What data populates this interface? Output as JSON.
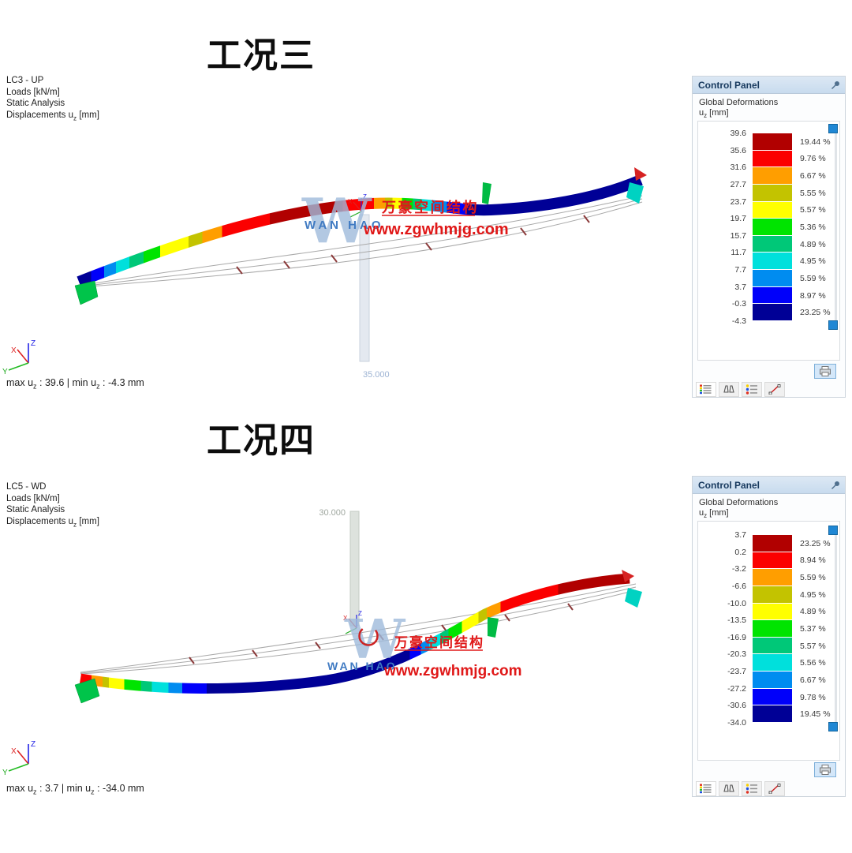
{
  "watermark": {
    "logo_letter": "W",
    "brand": "WAN HAO",
    "brand_cn": "万豪空间结构",
    "url": "www.zgwhmjg.com"
  },
  "palette": {
    "legend_colors": [
      "#b10000",
      "#fb0000",
      "#ff9e00",
      "#c3c300",
      "#ffff00",
      "#00e400",
      "#00c878",
      "#00e0dc",
      "#008cf0",
      "#0000fa",
      "#000096"
    ],
    "slider_handle": "#1f87d4",
    "header_bg": "#cfe0f0",
    "header_text": "#17395e",
    "watermark_blue": "#3f7ac2",
    "watermark_red": "#e01818"
  },
  "panels": [
    {
      "section_title": "工况三",
      "info": {
        "line1": "LC3 - UP",
        "line2": "Loads [kN/m]",
        "line3": "Static Analysis",
        "line4_pre": "Displacements u",
        "line4_sub": "z",
        "line4_post": " [mm]"
      },
      "dimension_label": "35.000",
      "result": {
        "pre": "max u",
        "sub1": "z",
        "mid": " : 39.6 | min u",
        "sub2": "z",
        "post": " : -4.3 mm"
      },
      "control_panel": {
        "title": "Control Panel",
        "subtitle": "Global Deformations",
        "unit_pre": "u",
        "unit_sub": "z",
        "unit_post": " [mm]",
        "legend": {
          "boundary_values": [
            "39.6",
            "35.6",
            "31.6",
            "27.7",
            "23.7",
            "19.7",
            "15.7",
            "11.7",
            "7.7",
            "3.7",
            "-0.3",
            "-4.3"
          ],
          "percentages": [
            "19.44 %",
            "9.76 %",
            "6.67 %",
            "5.55 %",
            "5.57 %",
            "5.36 %",
            "4.89 %",
            "4.95 %",
            "5.59 %",
            "8.97 %",
            "23.25 %"
          ]
        }
      }
    },
    {
      "section_title": "工况四",
      "info": {
        "line1": "LC5 - WD",
        "line2": "Loads [kN/m]",
        "line3": "Static Analysis",
        "line4_pre": "Displacements u",
        "line4_sub": "z",
        "line4_post": " [mm]"
      },
      "dimension_label": "30.000",
      "result": {
        "pre": "max u",
        "sub1": "z",
        "mid": " : 3.7 | min u",
        "sub2": "z",
        "post": " : -34.0 mm"
      },
      "control_panel": {
        "title": "Control Panel",
        "subtitle": "Global Deformations",
        "unit_pre": "u",
        "unit_sub": "z",
        "unit_post": " [mm]",
        "legend": {
          "boundary_values": [
            "3.7",
            "0.2",
            "-3.2",
            "-6.6",
            "-10.0",
            "-13.5",
            "-16.9",
            "-20.3",
            "-23.7",
            "-27.2",
            "-30.6",
            "-34.0"
          ],
          "percentages": [
            "23.25 %",
            "8.94 %",
            "5.59 %",
            "4.95 %",
            "4.89 %",
            "5.37 %",
            "5.57 %",
            "5.56 %",
            "6.67 %",
            "9.78 %",
            "19.45 %"
          ]
        }
      }
    }
  ]
}
